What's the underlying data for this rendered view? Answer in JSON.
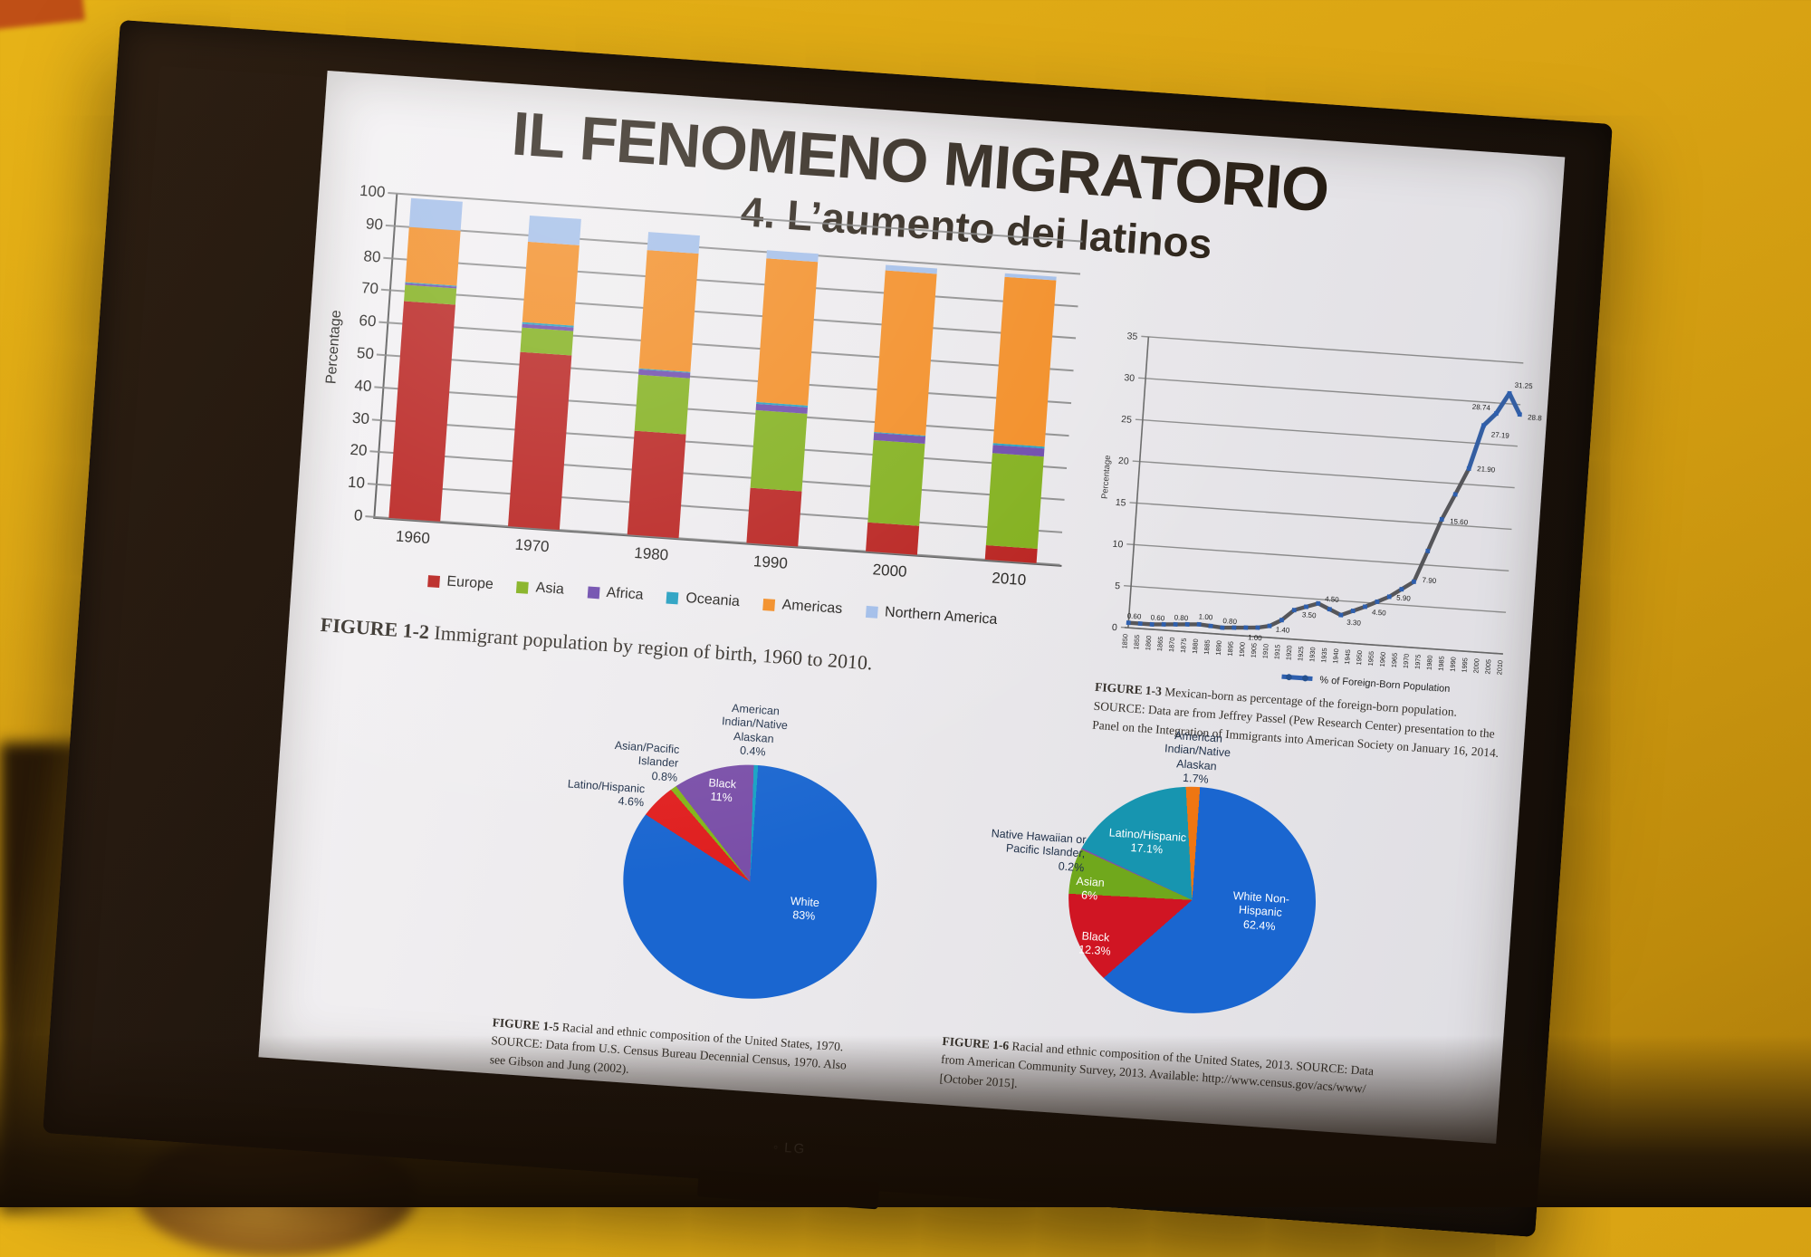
{
  "slide": {
    "title": "IL FENOMENO MIGRATORIO",
    "subtitle": "4. L’aumento dei latinos"
  },
  "tv": {
    "brand": "LG"
  },
  "fig12": {
    "label": "FIGURE 1-2",
    "caption": " Immigrant population by region of birth, 1960 to 2010."
  },
  "fig13": {
    "label": "FIGURE 1-3",
    "caption": " Mexican-born as percentage of the foreign-born population.",
    "source": "SOURCE: Data are from Jeffrey Passel (Pew Research Center) presentation to the Panel on the Integration of Immigrants into American Society on January 16, 2014."
  },
  "fig15": {
    "label": "FIGURE 1-5",
    "caption": " Racial and ethnic composition of the United States, 1970.",
    "source": "SOURCE: Data from U.S. Census Bureau Decennial Census, 1970. Also see Gibson and Jung (2002)."
  },
  "fig16": {
    "label": "FIGURE 1-6",
    "caption": " Racial and ethnic composition of the United States, 2013.",
    "source": "SOURCE: Data from American Community Survey, 2013. Available: http://www.census.gov/acs/www/ [October 2015]."
  },
  "chart_data": [
    {
      "type": "bar",
      "stacked": true,
      "title": "",
      "xlabel": "",
      "ylabel": "Percentage",
      "ylim": [
        0,
        100
      ],
      "yticks": [
        0,
        10,
        20,
        30,
        40,
        50,
        60,
        70,
        80,
        90,
        100
      ],
      "grid": true,
      "legend_position": "bottom",
      "categories": [
        "1960",
        "1970",
        "1980",
        "1990",
        "2000",
        "2010"
      ],
      "series": [
        {
          "name": "Europe",
          "color": "#b71d1a",
          "values": [
            67,
            54,
            32,
            17,
            9,
            4.5
          ]
        },
        {
          "name": "Asia",
          "color": "#7fae17",
          "values": [
            5,
            7.5,
            17.5,
            24,
            25.5,
            28.5
          ]
        },
        {
          "name": "Africa",
          "color": "#6a46aa",
          "values": [
            0.6,
            1.2,
            1.6,
            2,
            2,
            2.5
          ]
        },
        {
          "name": "Oceania",
          "color": "#1f9cbf",
          "values": [
            0.4,
            0.4,
            0.4,
            0.5,
            0.5,
            0.5
          ]
        },
        {
          "name": "Americas",
          "color": "#f28a1f",
          "values": [
            17,
            25,
            36.5,
            44.5,
            50,
            51.5
          ]
        },
        {
          "name": "Northern America",
          "color": "#a0bce8",
          "values": [
            9,
            8,
            5.5,
            2.5,
            1.5,
            1
          ]
        }
      ]
    },
    {
      "type": "line",
      "title": "",
      "xlabel": "",
      "ylabel": "Percentage",
      "ylim": [
        0,
        35
      ],
      "yticks": [
        0,
        5,
        10,
        15,
        20,
        25,
        30,
        35
      ],
      "grid": true,
      "legend": "% of Foreign-Born Population",
      "legend_position": "bottom",
      "line_color": "#56565a",
      "marker_color": "#2e5fae",
      "points": [
        {
          "year": 1850,
          "value": 0.6,
          "label": "0.60"
        },
        {
          "year": 1855,
          "value": 0.6
        },
        {
          "year": 1860,
          "value": 0.6,
          "label": "0.60"
        },
        {
          "year": 1865,
          "value": 0.7
        },
        {
          "year": 1870,
          "value": 0.8,
          "label": "0.80"
        },
        {
          "year": 1875,
          "value": 0.9
        },
        {
          "year": 1880,
          "value": 1.0,
          "label": "1.00"
        },
        {
          "year": 1885,
          "value": 0.9
        },
        {
          "year": 1890,
          "value": 0.8,
          "label": "0.80"
        },
        {
          "year": 1895,
          "value": 0.9
        },
        {
          "year": 1900,
          "value": 1.0,
          "label": "1.00"
        },
        {
          "year": 1905,
          "value": 1.1
        },
        {
          "year": 1910,
          "value": 1.4,
          "label": "1.40"
        },
        {
          "year": 1915,
          "value": 2.2
        },
        {
          "year": 1920,
          "value": 3.5,
          "label": "3.50"
        },
        {
          "year": 1925,
          "value": 4.0
        },
        {
          "year": 1930,
          "value": 4.5,
          "label": "4.50"
        },
        {
          "year": 1935,
          "value": 3.9
        },
        {
          "year": 1940,
          "value": 3.3,
          "label": "3.30"
        },
        {
          "year": 1945,
          "value": 3.9
        },
        {
          "year": 1950,
          "value": 4.5,
          "label": "4.50"
        },
        {
          "year": 1955,
          "value": 5.2
        },
        {
          "year": 1960,
          "value": 5.9,
          "label": "5.90"
        },
        {
          "year": 1965,
          "value": 6.9
        },
        {
          "year": 1970,
          "value": 7.9,
          "label": "7.90"
        },
        {
          "year": 1975,
          "value": 11.7
        },
        {
          "year": 1980,
          "value": 15.6,
          "label": "15.60"
        },
        {
          "year": 1985,
          "value": 18.7
        },
        {
          "year": 1990,
          "value": 21.9,
          "label": "21.90"
        },
        {
          "year": 1995,
          "value": 27.19,
          "label": "27.19"
        },
        {
          "year": 2000,
          "value": 28.74,
          "label": "28.74"
        },
        {
          "year": 2005,
          "value": 31.25,
          "label": "31.25"
        },
        {
          "year": 2010,
          "value": 28.81,
          "label": "28.81"
        }
      ]
    },
    {
      "type": "pie",
      "year": "1970",
      "slices": [
        {
          "name": "White",
          "pct": 83,
          "pct_label": "83%",
          "color": "#1a66d0",
          "inside": true,
          "lines": [
            "White",
            "83%"
          ]
        },
        {
          "name": "Latino/Hispanic",
          "pct": 4.6,
          "pct_label": "4.6%",
          "color": "#e01f1f",
          "inside": false,
          "lines": [
            "Latino/Hispanic",
            "4.6%"
          ]
        },
        {
          "name": "Asian/Pacific Islander",
          "pct": 0.8,
          "pct_label": "0.8%",
          "color": "#83b519",
          "inside": false,
          "lines": [
            "Asian/Pacific",
            "Islander",
            "0.8%"
          ]
        },
        {
          "name": "Black",
          "pct": 11,
          "pct_label": "11%",
          "color": "#7a4fa8",
          "inside": true,
          "lines": [
            "Black",
            "11%"
          ]
        },
        {
          "name": "American Indian/Native Alaskan",
          "pct": 0.4,
          "pct_label": "0.4%",
          "color": "#17a2c4",
          "inside": false,
          "lines": [
            "American",
            "Indian/Native",
            "Alaskan",
            "0.4%"
          ]
        }
      ]
    },
    {
      "type": "pie",
      "year": "2013",
      "slices": [
        {
          "name": "White Non-Hispanic",
          "pct": 62.4,
          "pct_label": "62.4%",
          "color": "#1a66d0",
          "inside": true,
          "lines": [
            "White Non-",
            "Hispanic",
            "62.4%"
          ]
        },
        {
          "name": "Black",
          "pct": 12.3,
          "pct_label": "12.3%",
          "color": "#d01523",
          "inside": true,
          "lines": [
            "Black",
            "12.3%"
          ]
        },
        {
          "name": "Asian",
          "pct": 6,
          "pct_label": "6%",
          "color": "#70a81c",
          "inside": true,
          "lines": [
            "Asian",
            "6%"
          ]
        },
        {
          "name": "Native Hawaiian or Pacific Islander",
          "pct": 0.2,
          "pct_label": "0.2%",
          "color": "#8050a8",
          "inside": false,
          "lines": [
            "Native Hawaiian or",
            "Pacific Islander,",
            "0.2%"
          ]
        },
        {
          "name": "Latino/Hispanic",
          "pct": 17.1,
          "pct_label": "17.1%",
          "color": "#1795b0",
          "inside": true,
          "lines": [
            "Latino/Hispanic",
            "17.1%"
          ]
        },
        {
          "name": "American Indian/Native Alaskan",
          "pct": 1.7,
          "pct_label": "1.7%",
          "color": "#ef7612",
          "inside": false,
          "lines": [
            "American",
            "Indian/Native",
            "Alaskan",
            "1.7%"
          ]
        }
      ]
    }
  ]
}
